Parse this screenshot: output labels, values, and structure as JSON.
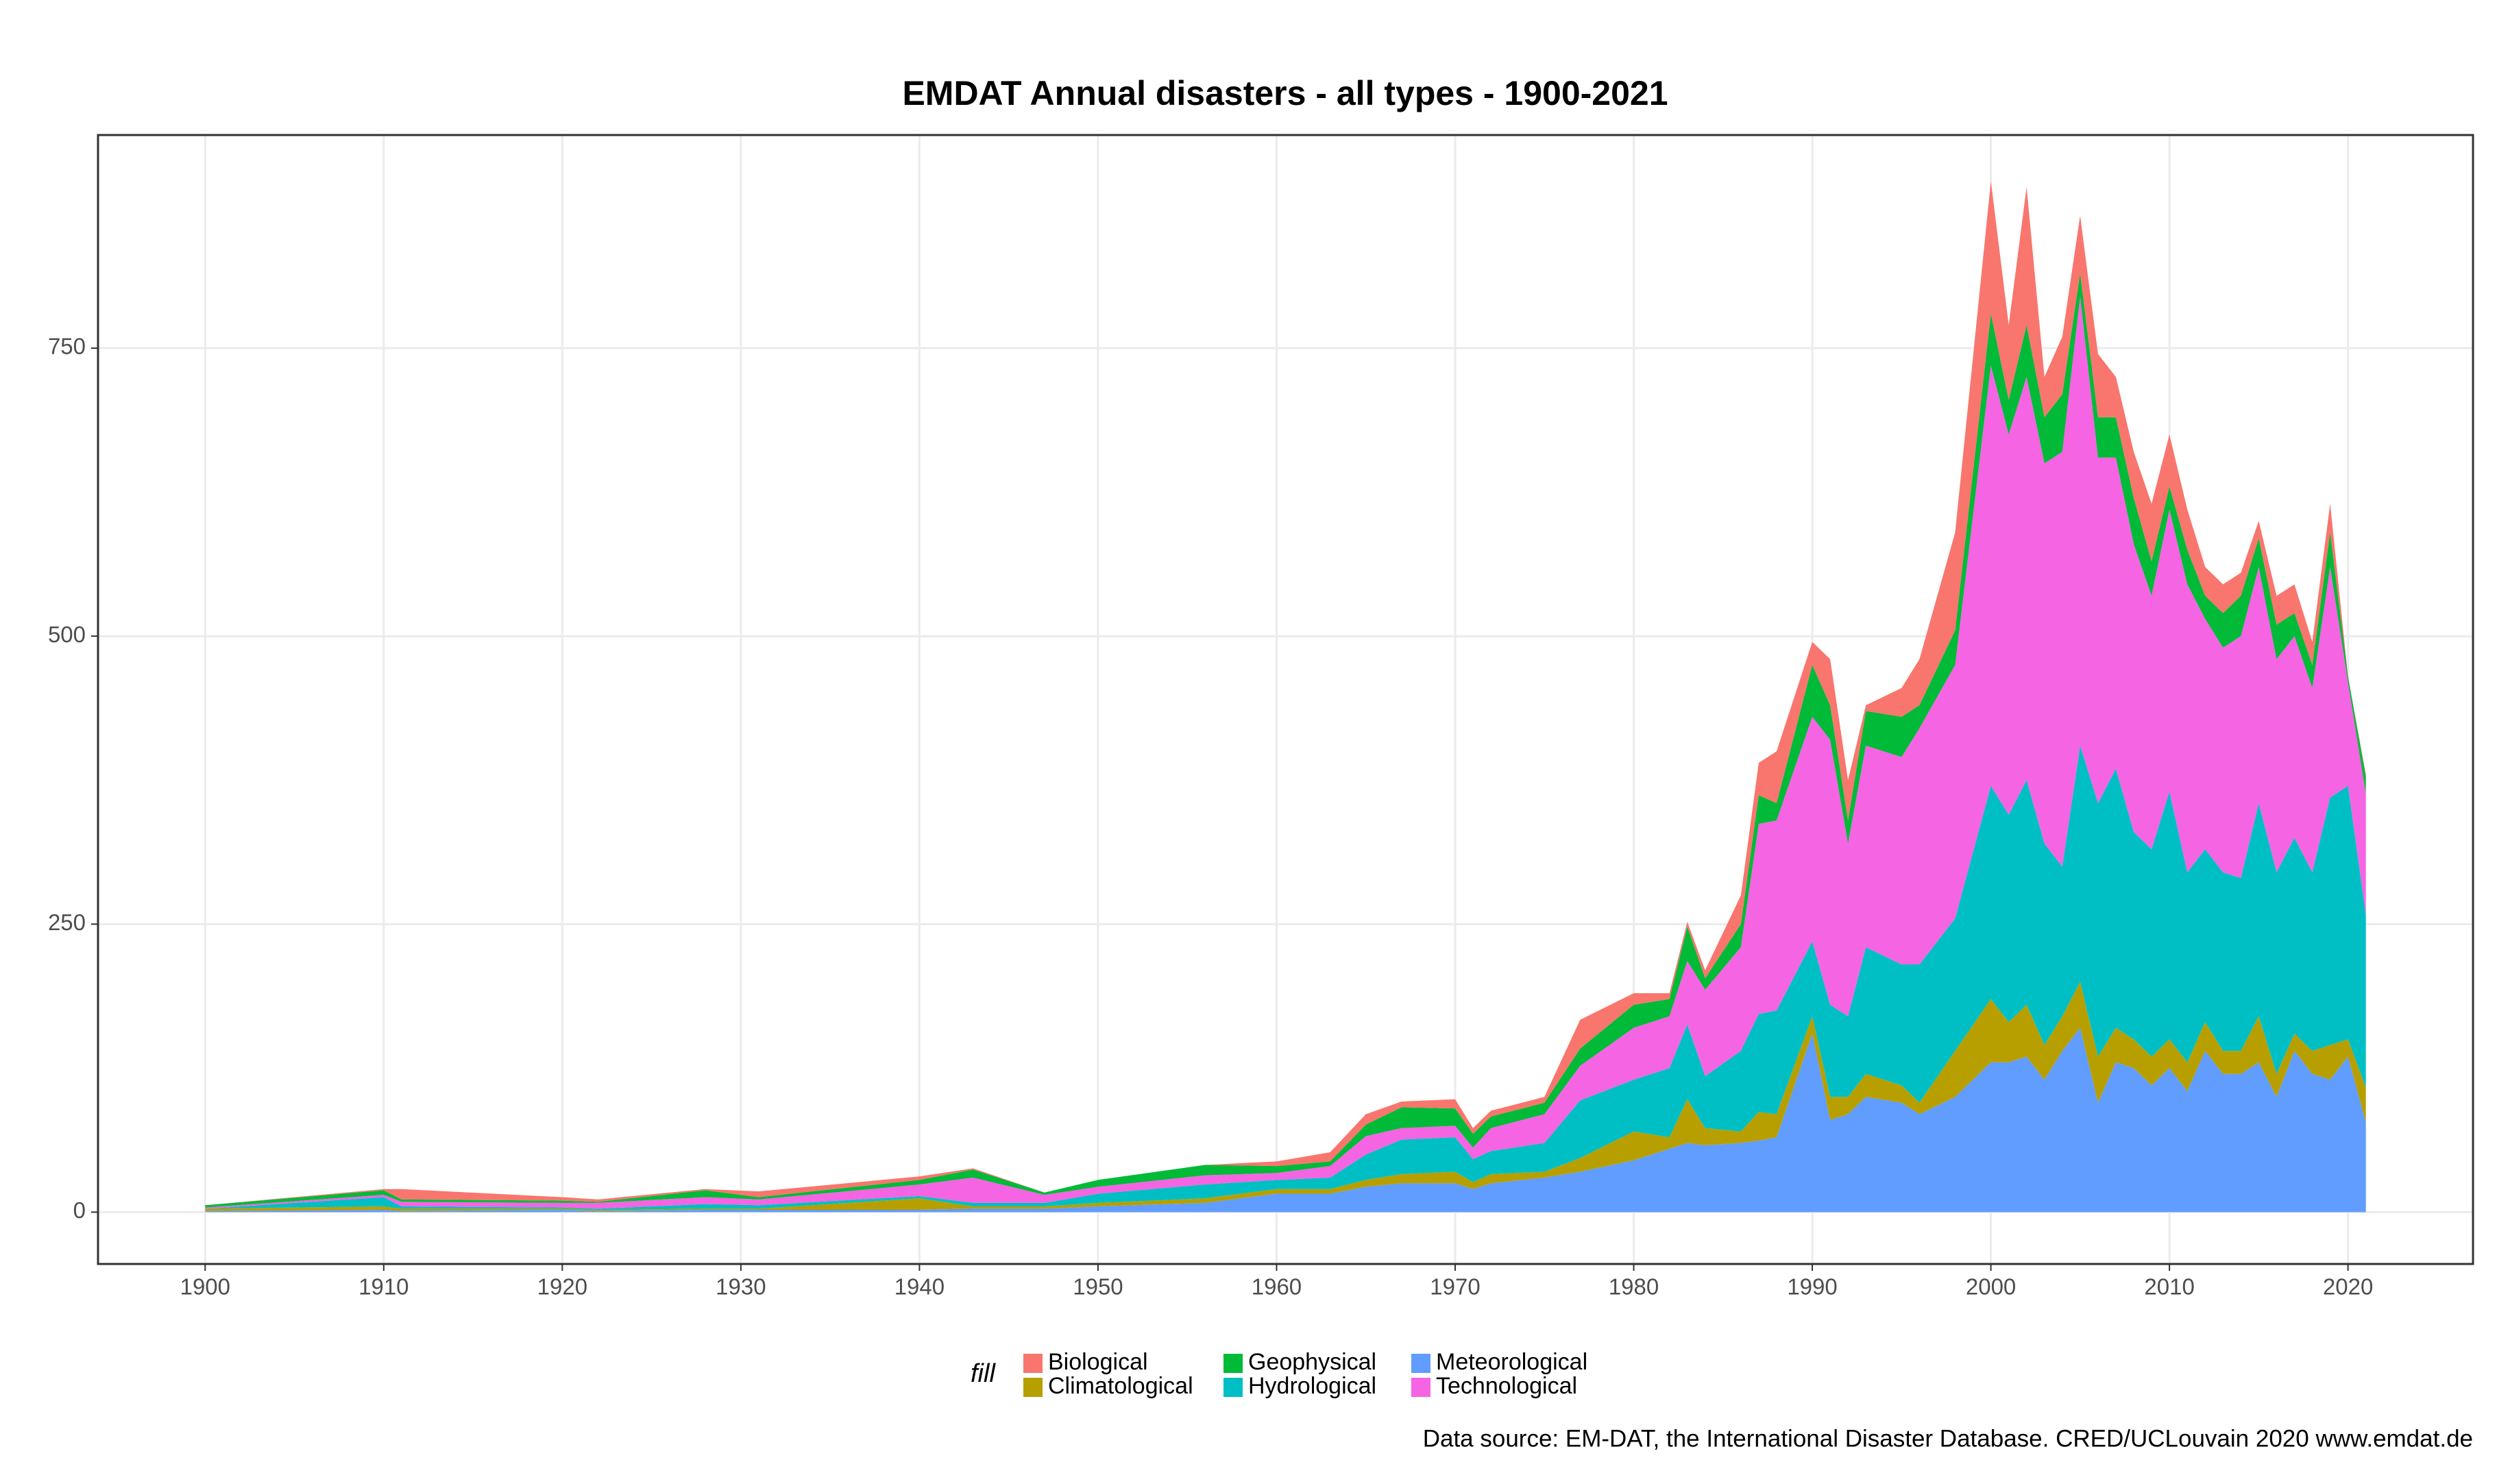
{
  "chart_data": {
    "type": "stacked_area",
    "title": "EMDAT Annual disasters - all types - 1900-2021",
    "caption": "Data source: EM-DAT, the International Disaster Database. CRED/UCLouvain 2020 www.emdat.de",
    "legend_title": "fill",
    "legend": "bottom",
    "grid": true,
    "x": [
      1900,
      1910,
      1911,
      1920,
      1922,
      1928,
      1931,
      1940,
      1943,
      1947,
      1950,
      1956,
      1960,
      1963,
      1965,
      1967,
      1970,
      1971,
      1972,
      1975,
      1977,
      1980,
      1982,
      1983,
      1984,
      1986,
      1987,
      1988,
      1990,
      1991,
      1992,
      1993,
      1995,
      1996,
      1998,
      2000,
      2001,
      2002,
      2003,
      2004,
      2005,
      2006,
      2007,
      2008,
      2009,
      2010,
      2011,
      2012,
      2013,
      2014,
      2015,
      2016,
      2017,
      2018,
      2019,
      2020,
      2021
    ],
    "series": [
      {
        "name": "Biological",
        "color": "#F8766D",
        "values": [
          0,
          1,
          9,
          3,
          2,
          1,
          5,
          3,
          1,
          0,
          0,
          0,
          4,
          8,
          9,
          5,
          8,
          5,
          5,
          5,
          25,
          10,
          5,
          4,
          7,
          25,
          28,
          45,
          20,
          40,
          35,
          5,
          25,
          40,
          85,
          115,
          65,
          120,
          35,
          50,
          50,
          55,
          35,
          40,
          50,
          45,
          35,
          25,
          25,
          20,
          15,
          25,
          25,
          20,
          25,
          0,
          2
        ]
      },
      {
        "name": "Climatological",
        "color": "#B79F00",
        "values": [
          2,
          3,
          2,
          1,
          1,
          1,
          1,
          10,
          2,
          2,
          3,
          4,
          4,
          4,
          6,
          8,
          10,
          6,
          8,
          5,
          12,
          25,
          10,
          38,
          15,
          10,
          25,
          20,
          15,
          20,
          15,
          20,
          15,
          10,
          40,
          55,
          35,
          45,
          30,
          30,
          40,
          40,
          30,
          25,
          25,
          25,
          25,
          25,
          20,
          20,
          40,
          20,
          15,
          20,
          30,
          15,
          30
        ]
      },
      {
        "name": "Geophysical",
        "color": "#00BA38",
        "values": [
          2,
          4,
          2,
          2,
          1,
          6,
          2,
          4,
          7,
          2,
          6,
          9,
          6,
          4,
          10,
          18,
          15,
          12,
          10,
          10,
          15,
          20,
          15,
          30,
          10,
          20,
          25,
          15,
          45,
          30,
          20,
          30,
          35,
          20,
          30,
          45,
          30,
          45,
          40,
          50,
          20,
          35,
          35,
          40,
          30,
          20,
          30,
          20,
          30,
          35,
          25,
          30,
          20,
          20,
          30,
          5,
          15
        ]
      },
      {
        "name": "Hydrological",
        "color": "#00BFC4",
        "values": [
          0,
          8,
          2,
          1,
          1,
          4,
          3,
          2,
          3,
          3,
          8,
          12,
          8,
          10,
          22,
          30,
          30,
          20,
          20,
          25,
          50,
          45,
          60,
          65,
          45,
          70,
          85,
          90,
          65,
          80,
          70,
          110,
          105,
          120,
          115,
          185,
          180,
          195,
          175,
          130,
          205,
          220,
          225,
          180,
          180,
          215,
          165,
          150,
          155,
          150,
          185,
          175,
          170,
          155,
          215,
          220,
          150
        ]
      },
      {
        "name": "Meteorological",
        "color": "#619CFF",
        "values": [
          1,
          2,
          1,
          2,
          1,
          2,
          2,
          2,
          3,
          3,
          5,
          8,
          16,
          16,
          22,
          25,
          25,
          20,
          25,
          30,
          35,
          45,
          55,
          60,
          58,
          60,
          62,
          65,
          155,
          80,
          85,
          100,
          95,
          85,
          100,
          130,
          130,
          135,
          115,
          140,
          160,
          95,
          130,
          125,
          110,
          125,
          105,
          140,
          120,
          120,
          130,
          100,
          140,
          120,
          115,
          135,
          78
        ]
      },
      {
        "name": "Technological",
        "color": "#F564E3",
        "values": [
          1,
          2,
          4,
          4,
          5,
          6,
          5,
          10,
          22,
          7,
          6,
          8,
          6,
          10,
          16,
          10,
          10,
          10,
          20,
          25,
          30,
          45,
          45,
          55,
          75,
          90,
          165,
          165,
          195,
          230,
          150,
          175,
          180,
          205,
          220,
          365,
          330,
          350,
          330,
          360,
          390,
          300,
          270,
          250,
          220,
          245,
          250,
          200,
          195,
          210,
          205,
          185,
          175,
          160,
          200,
          90,
          105
        ]
      }
    ],
    "xlim": [
      1894,
      2027
    ],
    "xticks": [
      1900,
      1910,
      1920,
      1930,
      1940,
      1950,
      1960,
      1970,
      1980,
      1990,
      2000,
      2010,
      2020
    ],
    "ylim": [
      -45,
      935
    ],
    "yticks": [
      0,
      250,
      500,
      750
    ]
  }
}
